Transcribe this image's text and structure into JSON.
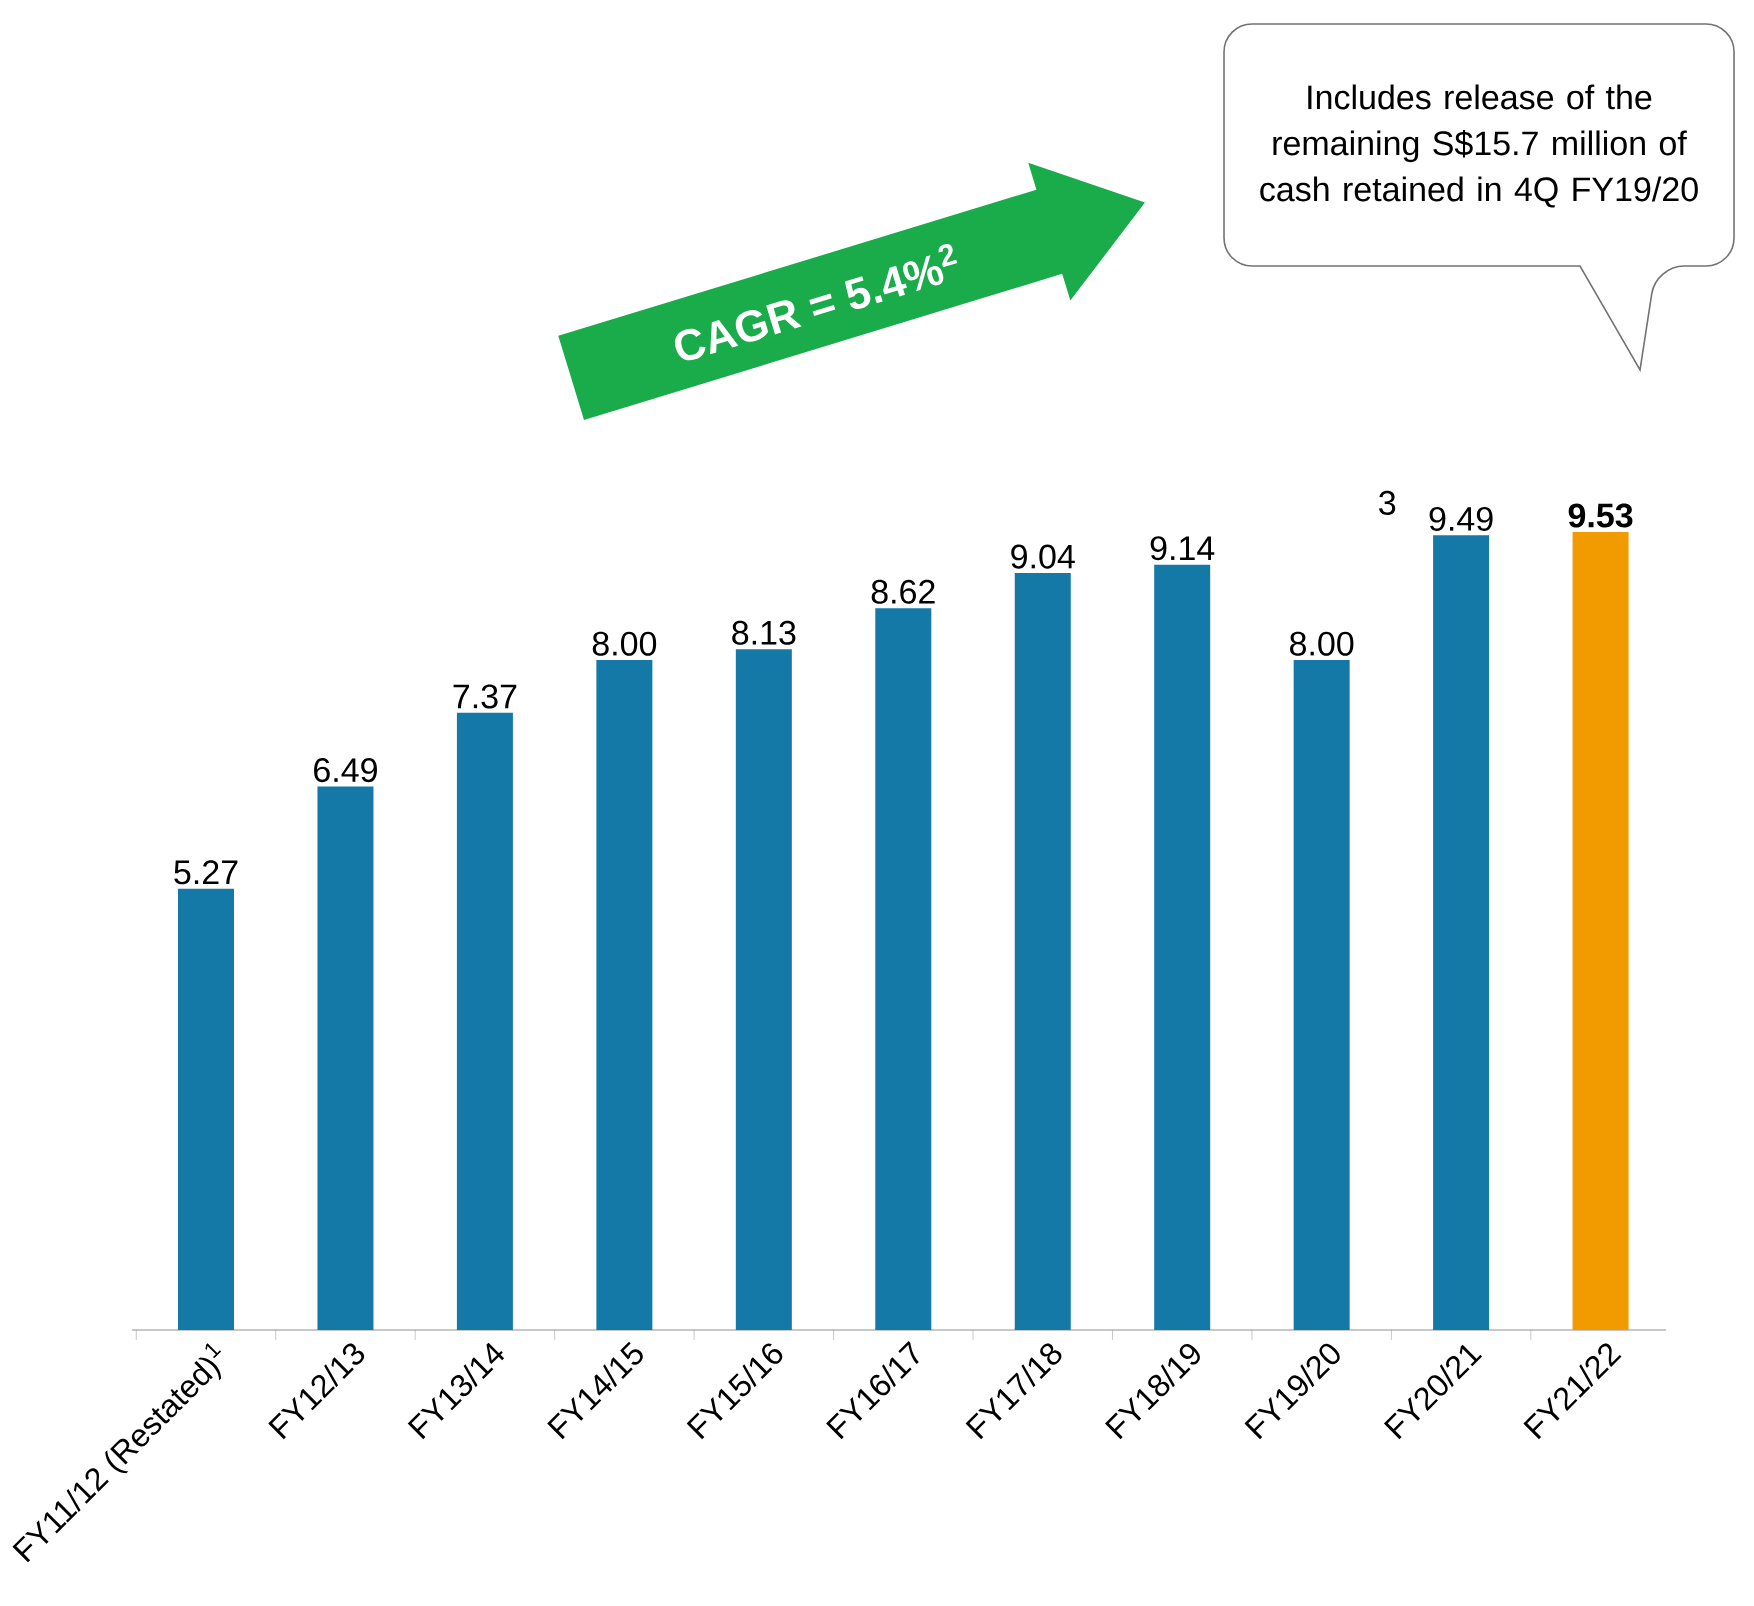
{
  "chart_data": {
    "type": "bar",
    "categories": [
      "FY11/12 (Restated)$^{1}$",
      "FY12/13",
      "FY13/14",
      "FY14/15",
      "FY15/16",
      "FY16/17",
      "FY17/18",
      "FY18/19",
      "FY19/20",
      "FY20/21",
      "FY21/22"
    ],
    "values": [
      5.27,
      6.49,
      7.37,
      8.0,
      8.13,
      8.62,
      9.04,
      9.14,
      8.0,
      9.49,
      9.53
    ],
    "colors": [
      "#1479a6",
      "#1479a6",
      "#1479a6",
      "#1479a6",
      "#1479a6",
      "#1479a6",
      "#1479a6",
      "#1479a6",
      "#1479a6",
      "#1479a6",
      "#f29b00"
    ],
    "value_labels": [
      "5.27",
      "6.49",
      "7.37",
      "8.00",
      "8.13",
      "8.62",
      "9.04",
      "9.14",
      "8.00",
      "9.49",
      "**9.53**"
    ],
    "annotations": [
      "CAGR = 5.4%$^{2}$",
      "Includes release of the remaining S$15.7 million of cash retained in 4Q FY19/20",
      {
        "text": "3",
        "x": "FY20/21",
        "y": 9.49
      }
    ]
  }
}
